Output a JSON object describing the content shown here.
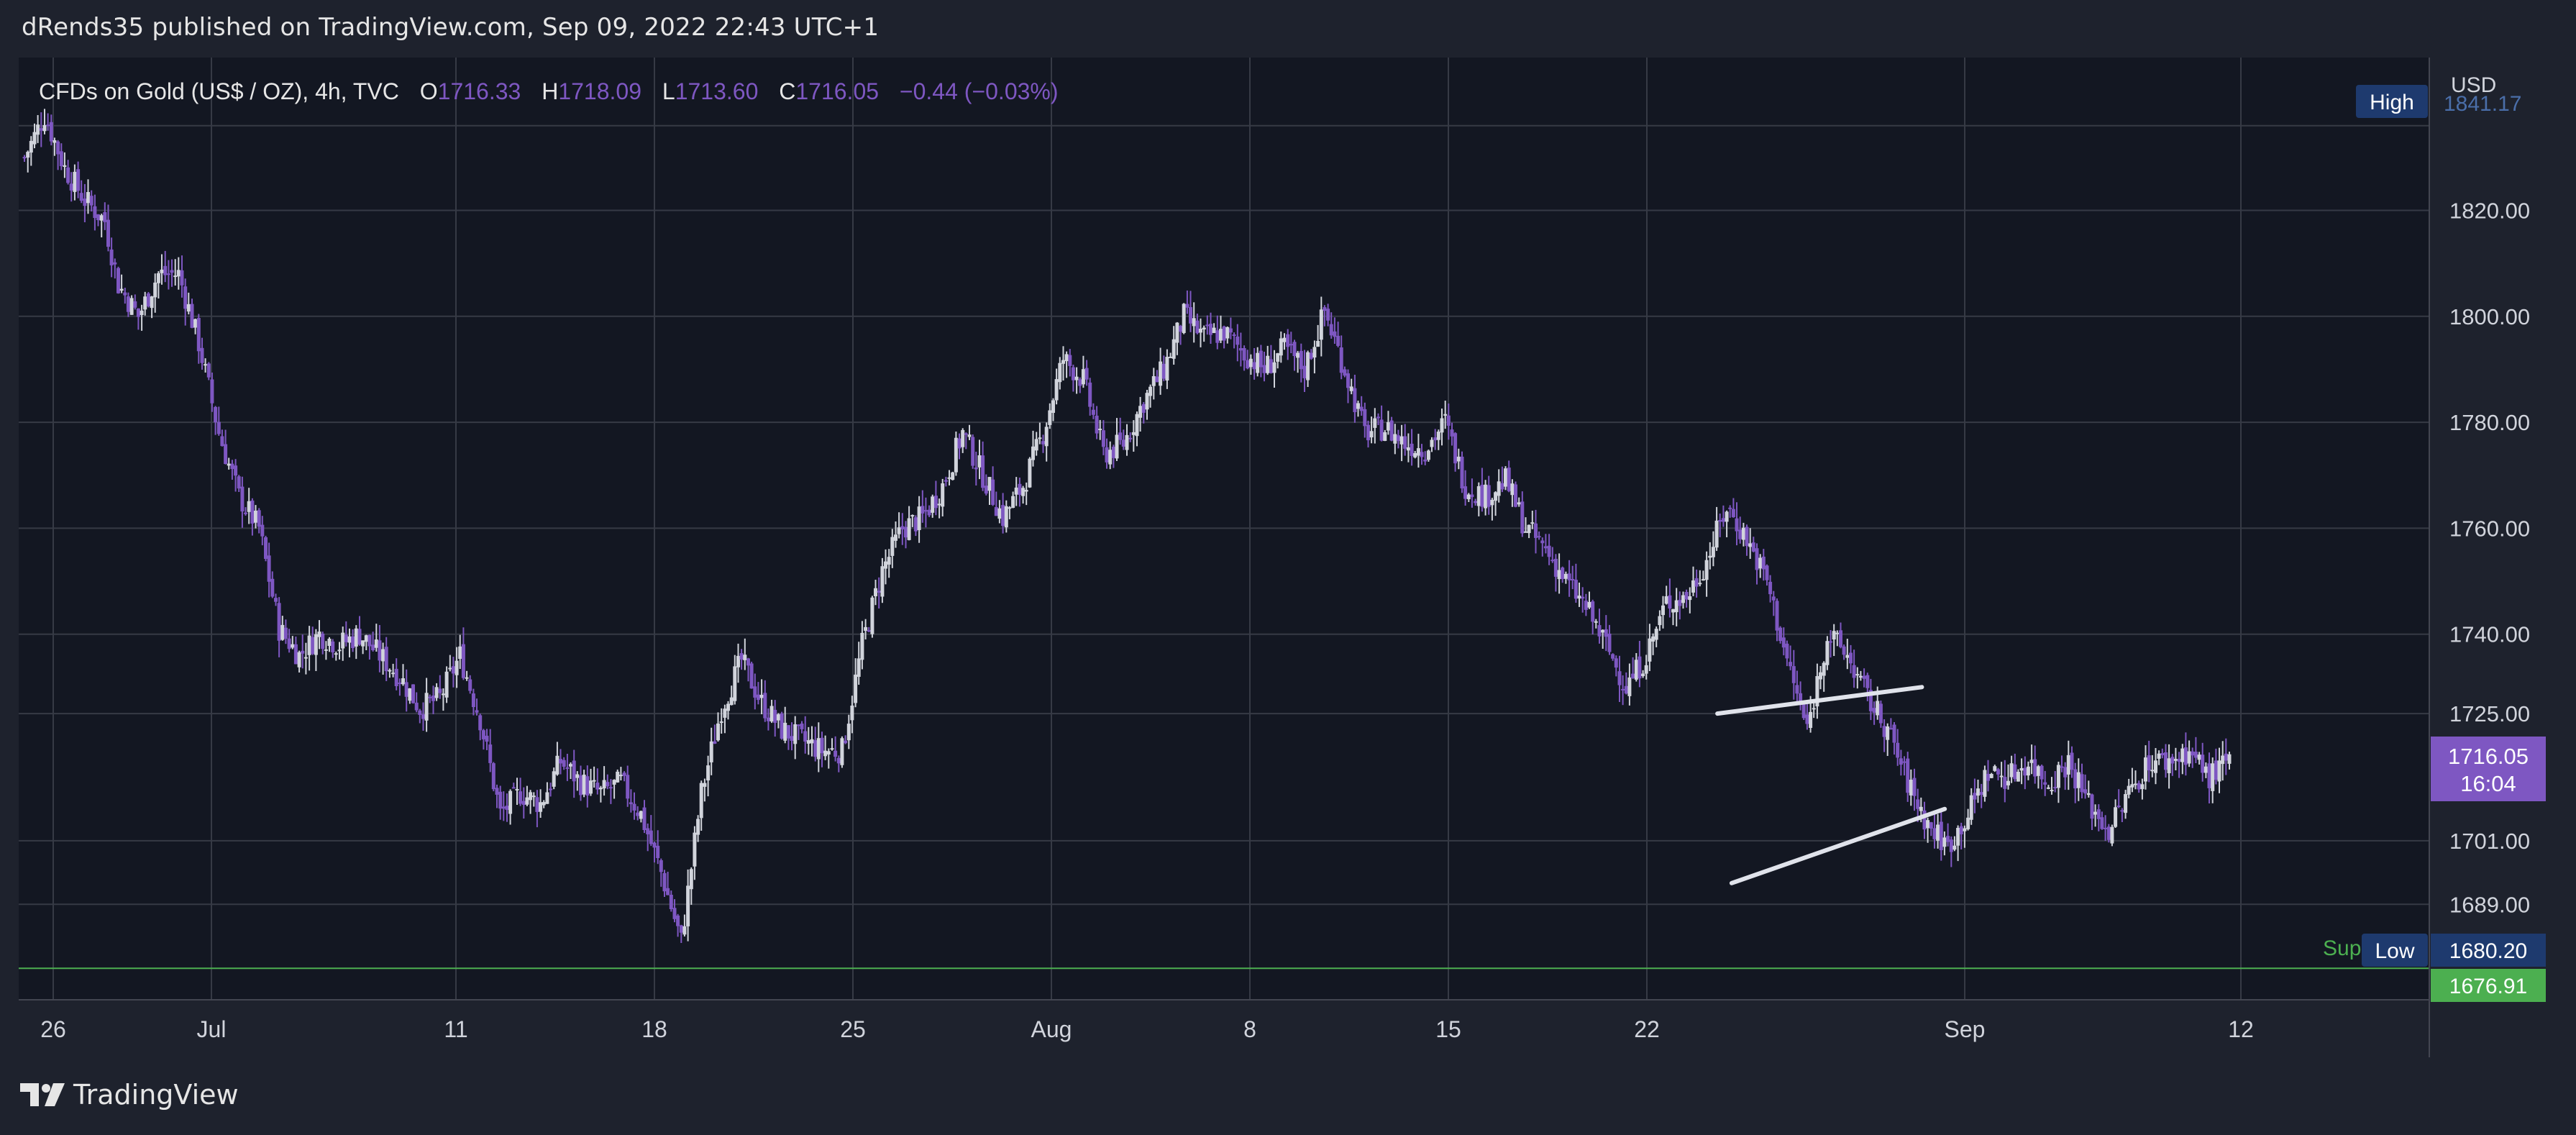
{
  "header": {
    "publisher": "dRends35 published on TradingView.com, Sep 09, 2022 22:43 UTC+1"
  },
  "watermark": {
    "label": "TradingView"
  },
  "legend": {
    "symbol": "CFDs on Gold (US$ / OZ), 4h, TVC",
    "o_key": "O",
    "o_val": "1716.33",
    "h_key": "H",
    "h_val": "1718.09",
    "l_key": "L",
    "l_val": "1713.60",
    "c_key": "C",
    "c_val": "1716.05",
    "change": "−0.44 (−0.03%)"
  },
  "colors": {
    "background": "#131722",
    "frame": "#1e222d",
    "grid": "#363a45",
    "up": "#d1d4dc",
    "down": "#7e57c2",
    "support": "#4caf50",
    "price_label": "#7e57c2",
    "hl_label": "#1e3a6e"
  },
  "chart_data": {
    "type": "candlestick",
    "title": "CFDs on Gold (US$ / OZ), 4h, TVC",
    "y_axis_unit": "USD",
    "y_ticks": [
      1689,
      1701,
      1725,
      1740,
      1760,
      1780,
      1800,
      1820
    ],
    "y_tick_labels": [
      "1689.00",
      "1701.00",
      "1725.00",
      "1740.00",
      "1760.00",
      "1780.00",
      "1800.00",
      "1820.00"
    ],
    "ylim": [
      1672,
      1843
    ],
    "x_ticks": [
      "26",
      "Jul",
      "11",
      "18",
      "25",
      "Aug",
      "8",
      "15",
      "22",
      "Sep",
      "12"
    ],
    "price_path": [
      [
        0,
        1830
      ],
      [
        6,
        1838
      ],
      [
        12,
        1828
      ],
      [
        18,
        1822
      ],
      [
        24,
        1818
      ],
      [
        28,
        1806
      ],
      [
        34,
        1800
      ],
      [
        40,
        1808
      ],
      [
        46,
        1808
      ],
      [
        52,
        1795
      ],
      [
        58,
        1778
      ],
      [
        64,
        1766
      ],
      [
        70,
        1760
      ],
      [
        76,
        1741
      ],
      [
        82,
        1736
      ],
      [
        88,
        1740
      ],
      [
        94,
        1738
      ],
      [
        100,
        1740
      ],
      [
        106,
        1736
      ],
      [
        112,
        1732
      ],
      [
        118,
        1726
      ],
      [
        124,
        1728
      ],
      [
        130,
        1736
      ],
      [
        136,
        1724
      ],
      [
        142,
        1706
      ],
      [
        148,
        1710
      ],
      [
        154,
        1708
      ],
      [
        160,
        1716
      ],
      [
        166,
        1712
      ],
      [
        172,
        1710
      ],
      [
        178,
        1712
      ],
      [
        184,
        1706
      ],
      [
        190,
        1695
      ],
      [
        196,
        1682
      ],
      [
        202,
        1710
      ],
      [
        208,
        1726
      ],
      [
        214,
        1735
      ],
      [
        220,
        1727
      ],
      [
        226,
        1722
      ],
      [
        232,
        1720
      ],
      [
        238,
        1718
      ],
      [
        244,
        1718
      ],
      [
        250,
        1738
      ],
      [
        256,
        1752
      ],
      [
        262,
        1760
      ],
      [
        268,
        1762
      ],
      [
        274,
        1768
      ],
      [
        280,
        1778
      ],
      [
        286,
        1770
      ],
      [
        292,
        1762
      ],
      [
        298,
        1768
      ],
      [
        304,
        1778
      ],
      [
        310,
        1792
      ],
      [
        316,
        1788
      ],
      [
        322,
        1774
      ],
      [
        328,
        1776
      ],
      [
        334,
        1784
      ],
      [
        340,
        1790
      ],
      [
        346,
        1800
      ],
      [
        352,
        1796
      ],
      [
        358,
        1797
      ],
      [
        364,
        1793
      ],
      [
        370,
        1790
      ],
      [
        376,
        1794
      ],
      [
        382,
        1790
      ],
      [
        388,
        1801
      ],
      [
        394,
        1790
      ],
      [
        400,
        1778
      ],
      [
        406,
        1779
      ],
      [
        412,
        1776
      ],
      [
        418,
        1775
      ],
      [
        424,
        1780
      ],
      [
        430,
        1768
      ],
      [
        436,
        1766
      ],
      [
        442,
        1769
      ],
      [
        448,
        1760
      ],
      [
        454,
        1756
      ],
      [
        460,
        1750
      ],
      [
        466,
        1745
      ],
      [
        472,
        1738
      ],
      [
        478,
        1730
      ],
      [
        484,
        1736
      ],
      [
        490,
        1746
      ],
      [
        496,
        1747
      ],
      [
        502,
        1754
      ],
      [
        508,
        1764
      ],
      [
        514,
        1758
      ],
      [
        520,
        1750
      ],
      [
        526,
        1735
      ],
      [
        532,
        1722
      ],
      [
        538,
        1740
      ],
      [
        544,
        1736
      ],
      [
        550,
        1728
      ],
      [
        556,
        1722
      ],
      [
        562,
        1712
      ],
      [
        568,
        1704
      ],
      [
        574,
        1700
      ],
      [
        580,
        1706
      ],
      [
        586,
        1714
      ],
      [
        592,
        1713
      ],
      [
        598,
        1716
      ],
      [
        604,
        1712
      ],
      [
        610,
        1716
      ],
      [
        616,
        1708
      ],
      [
        622,
        1703
      ],
      [
        628,
        1710
      ],
      [
        634,
        1716
      ],
      [
        640,
        1716
      ],
      [
        646,
        1718
      ],
      [
        652,
        1713
      ],
      [
        658,
        1716
      ]
    ],
    "support_level": 1676.91,
    "support_label": "Sup",
    "current_price": "1716.05",
    "countdown": "16:04",
    "high_label": "High",
    "high_value": "1841.17",
    "low_label": "Low",
    "low_value": "1680.20",
    "support_value_label": "1676.91",
    "wedge_upper": [
      [
        1201,
        1725
      ],
      [
        1344,
        1730
      ]
    ],
    "wedge_lower": [
      [
        1211,
        1693
      ],
      [
        1360,
        1707
      ]
    ]
  }
}
